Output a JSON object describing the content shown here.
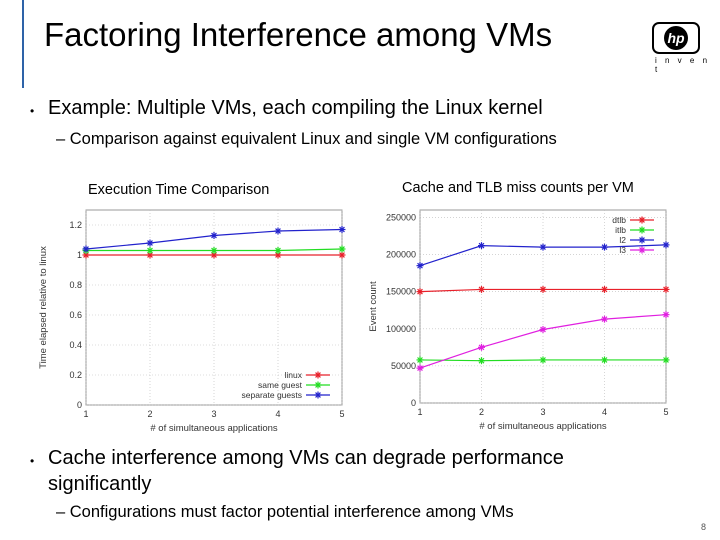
{
  "title": "Factoring Interference among VMs",
  "logo": {
    "text": "hp",
    "tagline": "i n v e n t"
  },
  "bullets": [
    {
      "text": "Example: Multiple VMs, each compiling the Linux kernel",
      "sub": "Comparison against equivalent Linux and single VM configurations"
    },
    {
      "text": "Cache interference among VMs can degrade performance",
      "text2": "significantly",
      "sub": "Configurations must factor potential interference among VMs"
    }
  ],
  "page_number": "8",
  "chart_data": [
    {
      "type": "line",
      "title": "Execution Time Comparison",
      "xlabel": "# of simultaneous applications",
      "ylabel": "Time elapsed relative to linux",
      "x": [
        1,
        2,
        3,
        4,
        5
      ],
      "xlim": [
        1,
        5
      ],
      "ylim": [
        0,
        1.3
      ],
      "yticks": [
        0,
        0.2,
        0.4,
        0.6,
        0.8,
        1,
        1.2
      ],
      "legend": "bottom-right",
      "series": [
        {
          "name": "linux",
          "values": [
            1.0,
            1.0,
            1.0,
            1.0,
            1.0
          ],
          "color": "#e8202a"
        },
        {
          "name": "same guest",
          "values": [
            1.03,
            1.03,
            1.03,
            1.03,
            1.04
          ],
          "color": "#22dd22"
        },
        {
          "name": "separate guests",
          "values": [
            1.04,
            1.08,
            1.13,
            1.16,
            1.17
          ],
          "color": "#2222cc"
        }
      ]
    },
    {
      "type": "line",
      "title": "Cache and TLB miss counts per VM",
      "xlabel": "# of simultaneous applications",
      "ylabel": "Event count",
      "x": [
        1,
        2,
        3,
        4,
        5
      ],
      "xlim": [
        1,
        5
      ],
      "ylim": [
        0,
        260000
      ],
      "yticks": [
        0,
        50000,
        100000,
        150000,
        200000,
        250000
      ],
      "legend": "top-right",
      "series": [
        {
          "name": "dtlb",
          "values": [
            150000,
            153000,
            153000,
            153000,
            153000
          ],
          "color": "#e8202a"
        },
        {
          "name": "itlb",
          "values": [
            58000,
            57000,
            58000,
            58000,
            58000
          ],
          "color": "#22dd22"
        },
        {
          "name": "l2",
          "values": [
            185000,
            212000,
            210000,
            210000,
            213000
          ],
          "color": "#2222cc"
        },
        {
          "name": "l3",
          "values": [
            47000,
            75000,
            99000,
            113000,
            119000
          ],
          "color": "#e020e0"
        }
      ]
    }
  ]
}
